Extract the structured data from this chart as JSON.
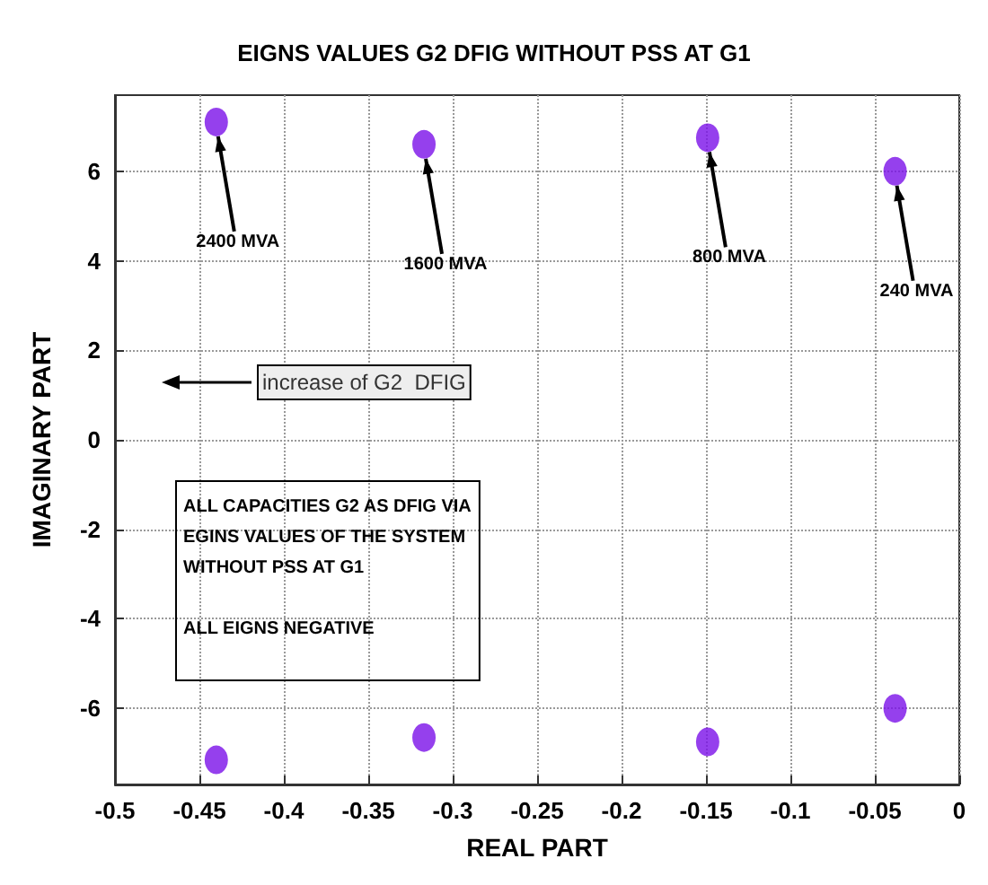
{
  "chart_data": {
    "type": "scatter",
    "title": "EIGNS VALUES G2 DFIG WITHOUT PSS AT G1",
    "xlabel": "REAL PART",
    "ylabel": "IMAGINARY PART",
    "x": [
      -0.44,
      -0.317,
      -0.149,
      -0.038,
      -0.44,
      -0.317,
      -0.149,
      -0.038
    ],
    "series": [
      {
        "color": "#7a10e8",
        "values": [
          7.1,
          6.6,
          6.75,
          6.0,
          -7.15,
          -6.65,
          -6.75,
          -6.0
        ]
      }
    ],
    "xlim": [
      -0.5,
      0
    ],
    "xticks": [
      -0.5,
      -0.45,
      -0.4,
      -0.35,
      -0.3,
      -0.25,
      -0.2,
      -0.15,
      -0.1,
      -0.05,
      0
    ],
    "ylim": [
      -7.7,
      7.7
    ],
    "yticks": [
      -6,
      -4,
      -2,
      0,
      2,
      4,
      6
    ],
    "grid": true,
    "marker": "circle",
    "annotations": [
      {
        "text": "2400 MVA",
        "x": -0.44,
        "y": 7.1
      },
      {
        "text": "1600 MVA",
        "x": -0.317,
        "y": 6.6
      },
      {
        "text": "800 MVA",
        "x": -0.149,
        "y": 6.75
      },
      {
        "text": "240 MVA",
        "x": -0.038,
        "y": 6.0
      },
      "increase of G2  DFIG",
      "ALL CAPACITIES G2 AS DFIG VIA\nEGINS VALUES OF THE SYSTEM\nWITHOUT PSS AT G1\n\nALL EIGNS NEGATIVE"
    ]
  }
}
